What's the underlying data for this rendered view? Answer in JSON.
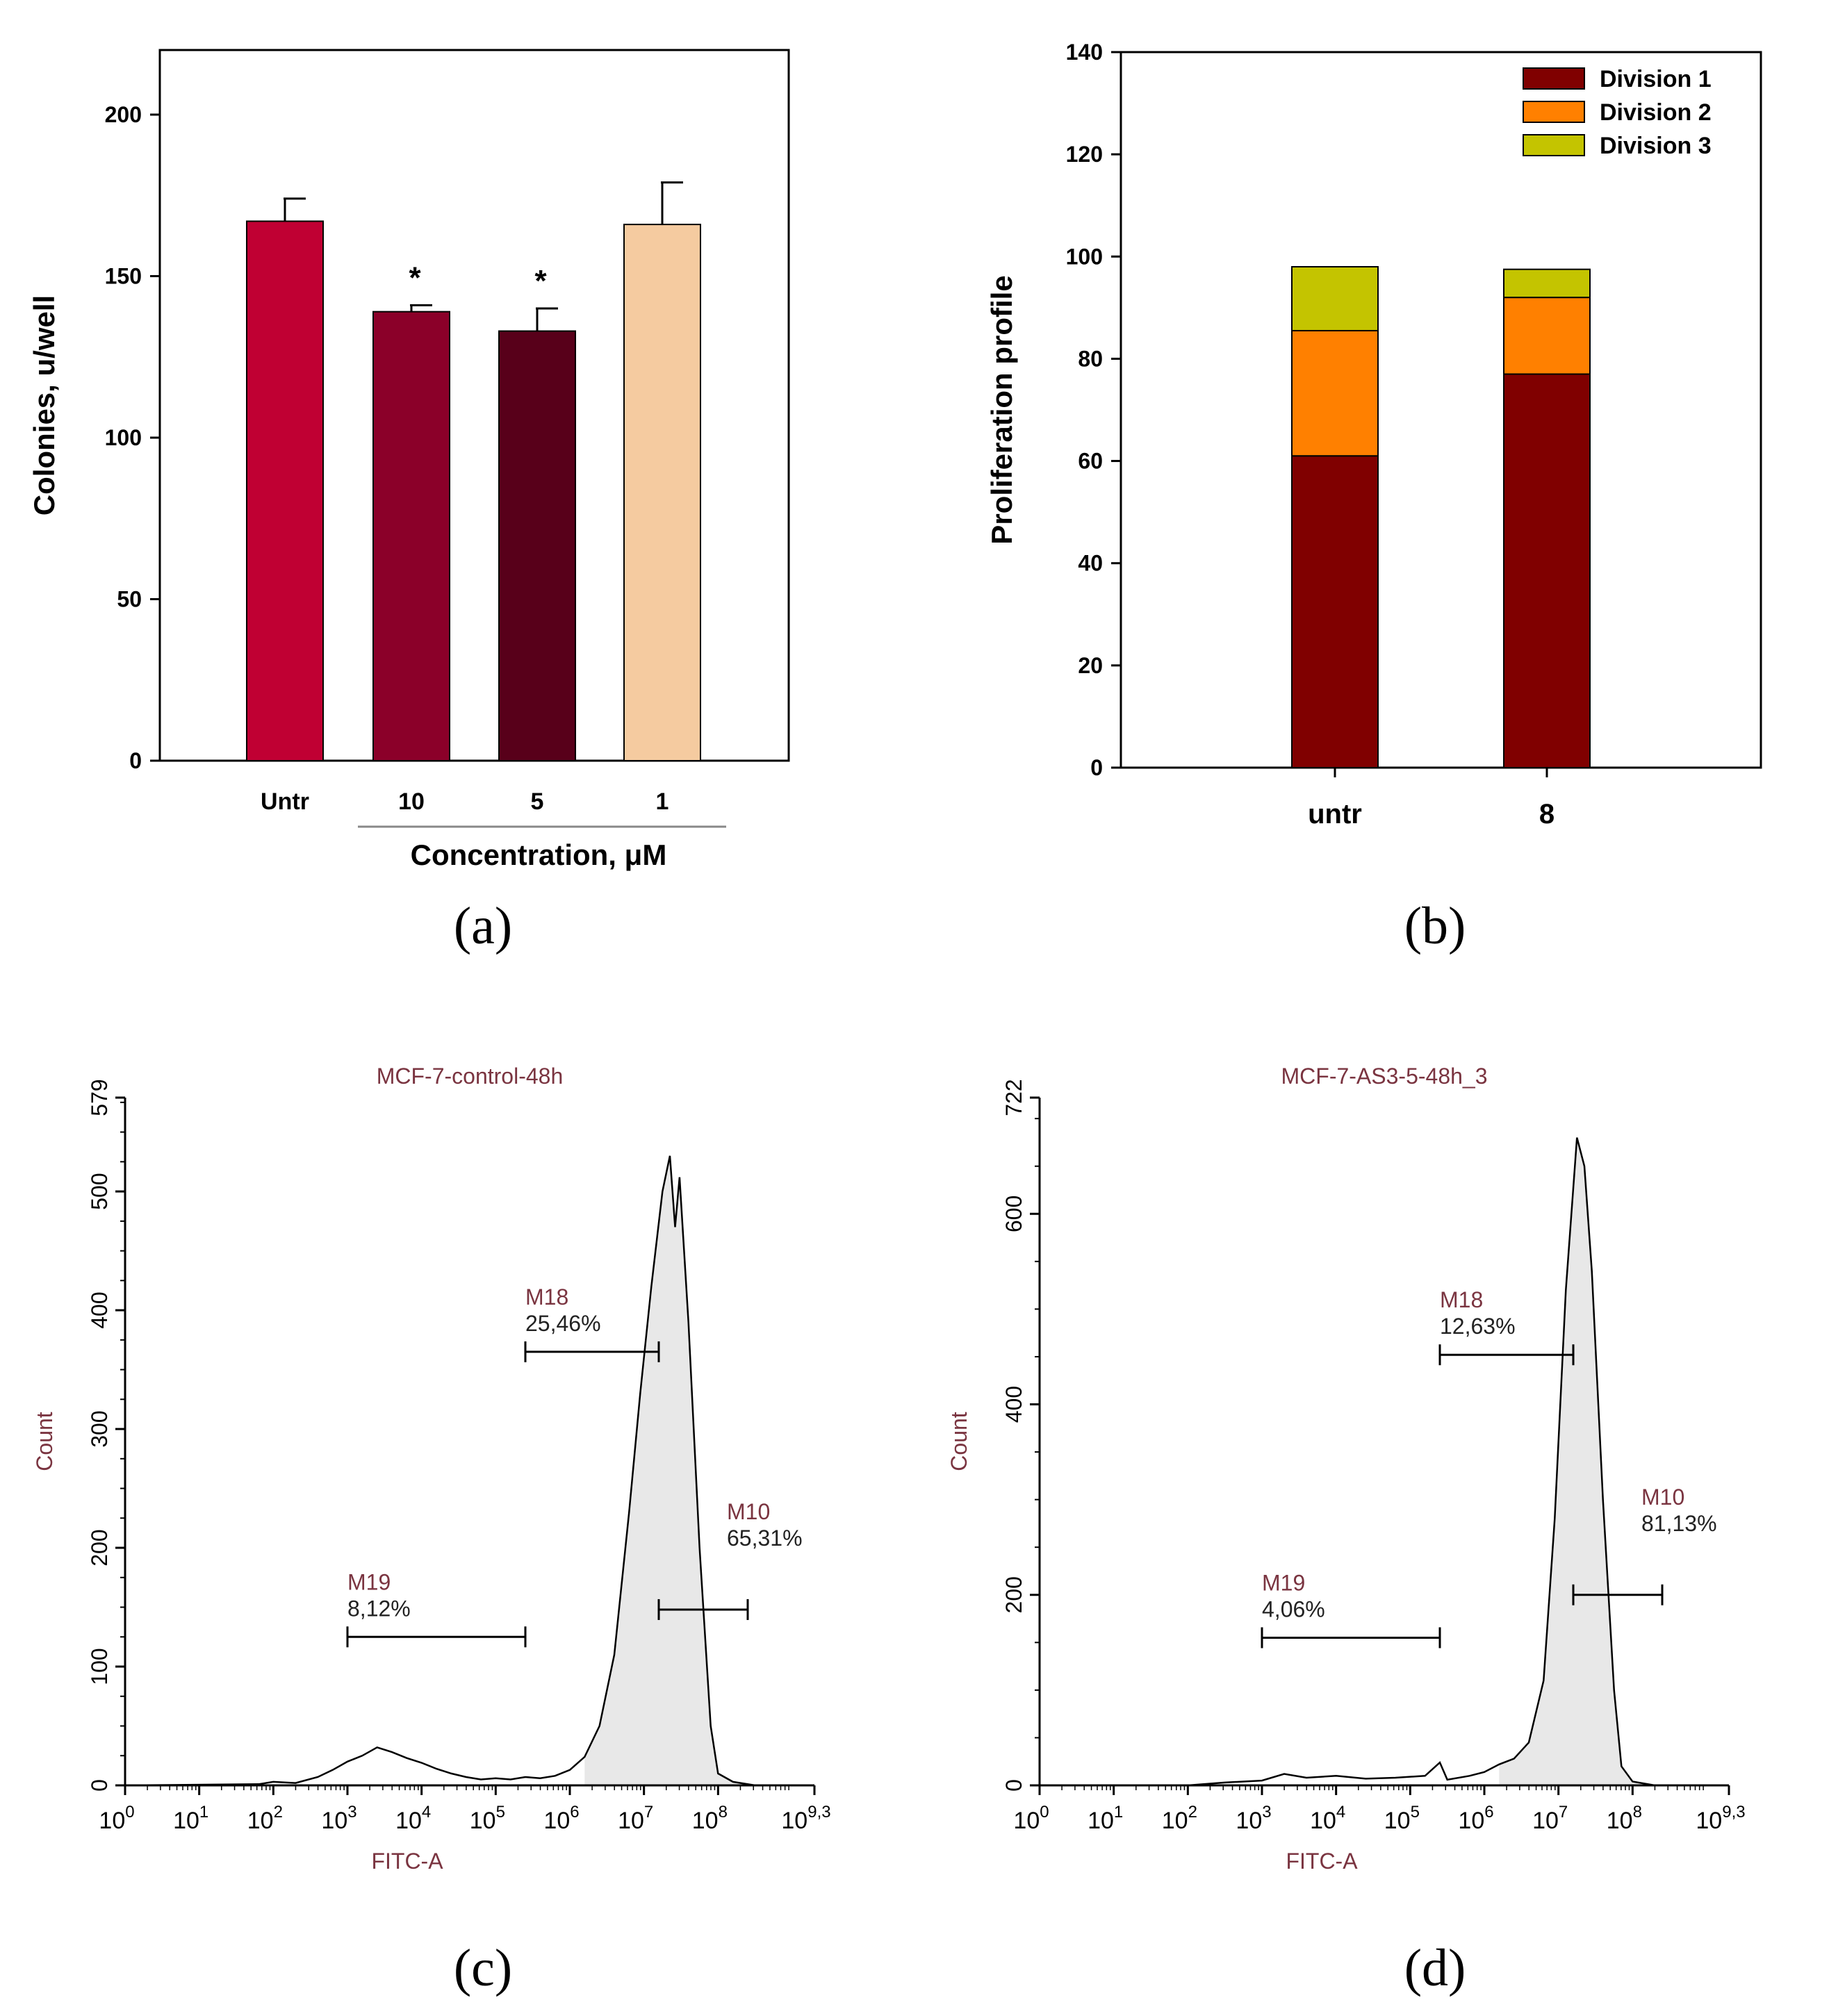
{
  "chart_data": [
    {
      "type": "bar",
      "panel": "(a)",
      "categories": [
        "Untr",
        "10",
        "5",
        "1"
      ],
      "values": [
        167,
        139,
        133,
        166
      ],
      "errors": [
        7,
        2,
        7,
        13
      ],
      "colors": [
        "#c00033",
        "#8b0029",
        "#58001a",
        "#f5cba0"
      ],
      "significance": [
        "",
        "*",
        "*",
        ""
      ],
      "ylabel": "Colonies, u/well",
      "xlabel": "Concentration, μM",
      "ylim": [
        0,
        220
      ],
      "yticks": [
        0,
        50,
        100,
        150,
        200
      ]
    },
    {
      "type": "bar",
      "stacked": true,
      "panel": "(b)",
      "categories": [
        "untr",
        "8"
      ],
      "series": [
        {
          "name": "Division 1",
          "color": "#800000",
          "values": [
            61,
            77
          ]
        },
        {
          "name": "Division 2",
          "color": "#ff8000",
          "values": [
            24.5,
            15
          ]
        },
        {
          "name": "Division 3",
          "color": "#c4c400",
          "values": [
            12.5,
            5.5
          ]
        }
      ],
      "ylabel": "Proliferation profile",
      "ylim": [
        0,
        140
      ],
      "yticks": [
        0,
        20,
        40,
        60,
        80,
        100,
        120,
        140
      ],
      "legend": "top-right"
    },
    {
      "type": "area",
      "panel": "(c)",
      "title": "MCF-7-control-48h",
      "xlabel": "FITC-A",
      "ylabel": "Count",
      "ylim": [
        0,
        579
      ],
      "yticks": [
        "0",
        "100",
        "200",
        "300",
        "400",
        "500",
        "579"
      ],
      "xlim_log10": [
        0,
        9.3
      ],
      "xtick_exponents": [
        "0",
        "1",
        "2",
        "3",
        "4",
        "5",
        "6",
        "7",
        "8",
        "9,3"
      ],
      "curve": [
        [
          0,
          0
        ],
        [
          1.8,
          1
        ],
        [
          2,
          3
        ],
        [
          2.3,
          2
        ],
        [
          2.6,
          7
        ],
        [
          2.8,
          13
        ],
        [
          3,
          20
        ],
        [
          3.2,
          25
        ],
        [
          3.4,
          32
        ],
        [
          3.6,
          28
        ],
        [
          3.8,
          23
        ],
        [
          4,
          19
        ],
        [
          4.2,
          14
        ],
        [
          4.4,
          10
        ],
        [
          4.6,
          7
        ],
        [
          4.8,
          5
        ],
        [
          5,
          6
        ],
        [
          5.2,
          5
        ],
        [
          5.4,
          7
        ],
        [
          5.6,
          6
        ],
        [
          5.8,
          8
        ],
        [
          6,
          13
        ],
        [
          6.2,
          24
        ],
        [
          6.4,
          50
        ],
        [
          6.6,
          110
        ],
        [
          6.8,
          230
        ],
        [
          6.95,
          330
        ],
        [
          7.1,
          420
        ],
        [
          7.25,
          500
        ],
        [
          7.35,
          530
        ],
        [
          7.42,
          470
        ],
        [
          7.48,
          512
        ],
        [
          7.6,
          390
        ],
        [
          7.75,
          200
        ],
        [
          7.9,
          50
        ],
        [
          8,
          10
        ],
        [
          8.2,
          3
        ],
        [
          8.5,
          0
        ]
      ],
      "markers": [
        {
          "name": "M19",
          "pct": "8,12%",
          "x1": 3.0,
          "x2": 5.4,
          "y": 125
        },
        {
          "name": "M18",
          "pct": "25,46%",
          "x1": 5.4,
          "x2": 7.2,
          "y": 365
        },
        {
          "name": "M10",
          "pct": "65,31%",
          "x1": 7.2,
          "x2": 8.4,
          "y": 148
        }
      ]
    },
    {
      "type": "area",
      "panel": "(d)",
      "title": "MCF-7-AS3-5-48h_3",
      "xlabel": "FITC-A",
      "ylabel": "Count",
      "ylim": [
        0,
        722
      ],
      "yticks": [
        "0",
        "200",
        "400",
        "600",
        "722"
      ],
      "xlim_log10": [
        0,
        9.3
      ],
      "xtick_exponents": [
        "0",
        "1",
        "2",
        "3",
        "4",
        "5",
        "6",
        "7",
        "8",
        "9,3"
      ],
      "curve": [
        [
          0,
          0
        ],
        [
          2,
          0
        ],
        [
          2.5,
          3
        ],
        [
          3,
          5
        ],
        [
          3.3,
          12
        ],
        [
          3.6,
          8
        ],
        [
          4,
          10
        ],
        [
          4.4,
          7
        ],
        [
          4.8,
          8
        ],
        [
          5.2,
          10
        ],
        [
          5.4,
          24
        ],
        [
          5.5,
          6
        ],
        [
          5.8,
          10
        ],
        [
          6,
          14
        ],
        [
          6.2,
          22
        ],
        [
          6.4,
          28
        ],
        [
          6.6,
          45
        ],
        [
          6.8,
          110
        ],
        [
          6.95,
          280
        ],
        [
          7.1,
          520
        ],
        [
          7.25,
          680
        ],
        [
          7.35,
          650
        ],
        [
          7.45,
          540
        ],
        [
          7.6,
          300
        ],
        [
          7.75,
          100
        ],
        [
          7.85,
          20
        ],
        [
          8,
          4
        ],
        [
          8.3,
          0
        ]
      ],
      "markers": [
        {
          "name": "M19",
          "pct": "4,06%",
          "x1": 3.0,
          "x2": 5.4,
          "y": 155
        },
        {
          "name": "M18",
          "pct": "12,63%",
          "x1": 5.4,
          "x2": 7.2,
          "y": 452
        },
        {
          "name": "M10",
          "pct": "81,13%",
          "x1": 7.2,
          "x2": 8.4,
          "y": 200
        }
      ]
    }
  ],
  "panel_labels": [
    "(a)",
    "(b)",
    "(c)",
    "(d)"
  ]
}
